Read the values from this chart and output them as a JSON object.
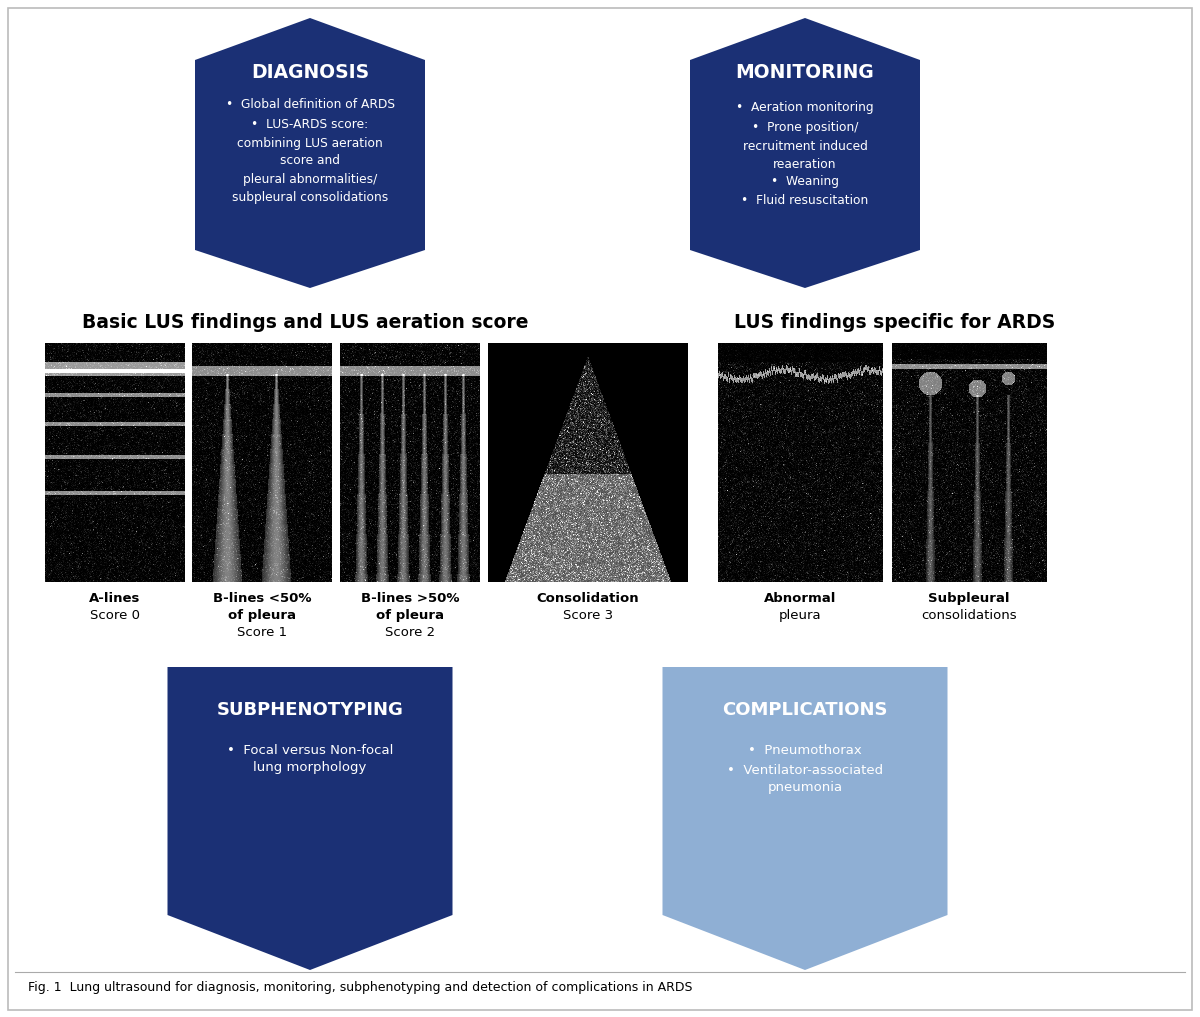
{
  "bg_color": "#ffffff",
  "dark_navy": "#1b3075",
  "light_blue": "#8fafd4",
  "fig_caption": "Fig. 1  Lung ultrasound for diagnosis, monitoring, subphenotyping and detection of complications in ARDS",
  "diagnosis_title": "DIAGNOSIS",
  "diagnosis_line1": "•  Global definition of ARDS",
  "diagnosis_line2": "•  LUS-ARDS score:",
  "diagnosis_line3": "combining LUS aeration",
  "diagnosis_line4": "score and",
  "diagnosis_line5": "pleural abnormalities/",
  "diagnosis_line6": "subpleural consolidations",
  "monitoring_title": "MONITORING",
  "monitoring_line1": "•  Aeration monitoring",
  "monitoring_line2": "•  Prone position/",
  "monitoring_line3": "recruitment induced",
  "monitoring_line4": "reaeration",
  "monitoring_line5": "•  Weaning",
  "monitoring_line6": "•  Fluid resuscitation",
  "section1_title": "Basic LUS findings and LUS aeration score",
  "section2_title": "LUS findings specific for ARDS",
  "subphenotyping_title": "SUBPHENOTYPING",
  "subphenotyping_line1": "•  Focal versus Non-focal",
  "subphenotyping_line2": "lung morphology",
  "complications_title": "COMPLICATIONS",
  "complications_line1": "•  Pneumothorax",
  "complications_line2": "•  Ventilator-associated",
  "complications_line3": "pneumonia"
}
